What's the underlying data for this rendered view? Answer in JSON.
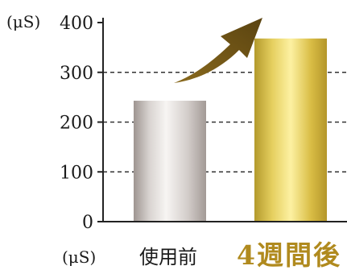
{
  "chart_data": {
    "type": "bar",
    "categories": [
      "使用前",
      "4週間後"
    ],
    "values": [
      243,
      368
    ],
    "ylim": [
      0,
      400
    ],
    "yticks": [
      0,
      100,
      200,
      300,
      400
    ],
    "ylabel_unit": "(μS)",
    "xlabel_unit": "(μS)",
    "grid": true,
    "bar_colors": [
      "#c9c3c0",
      "#d4b94a"
    ],
    "emphasis_color": "#b08a1e",
    "arrow_color": "#6e5314"
  }
}
